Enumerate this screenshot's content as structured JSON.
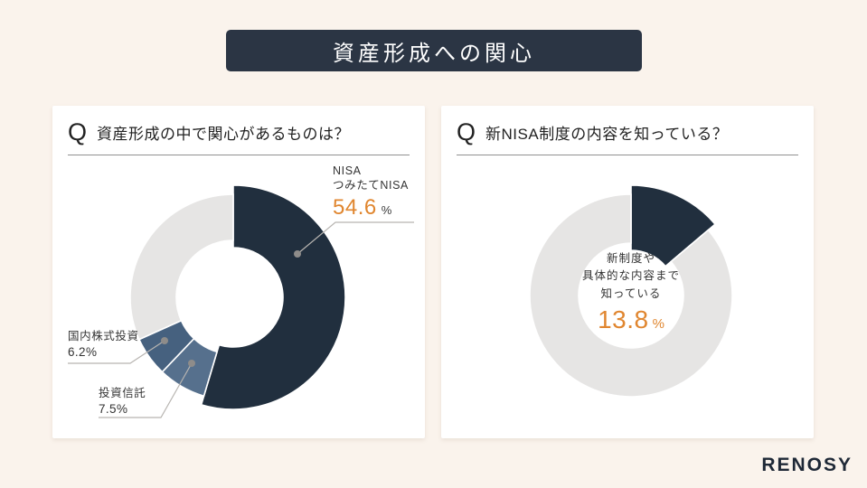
{
  "page": {
    "title": "資産形成への関心",
    "background_color": "#faf3ec",
    "banner_color": "#2b3544",
    "accent_orange": "#e0862f"
  },
  "brand": {
    "logo_text": "RENOSY"
  },
  "questions": [
    {
      "prefix": "Q",
      "title": "資産形成の中で関心があるものは？"
    },
    {
      "prefix": "Q",
      "title": "新NISA制度の内容を知っている？"
    }
  ],
  "chart_data": [
    {
      "type": "pie",
      "donut": true,
      "title": "資産形成の中で関心があるものは？",
      "start_angle_deg": 0,
      "direction": "clockwise",
      "legend": "none",
      "segments": [
        {
          "name": "NISA・つみたてNISA",
          "label_lines": [
            "NISA",
            "つみたてNISA"
          ],
          "value": 54.6,
          "unit": "%",
          "color": "#212f3e",
          "emphasis": true
        },
        {
          "name": "投資信託",
          "label_lines": [
            "投資信託"
          ],
          "value": 7.5,
          "unit": "%",
          "color": "#56708d",
          "emphasis": false
        },
        {
          "name": "国内株式投資",
          "label_lines": [
            "国内株式投資"
          ],
          "value": 6.2,
          "unit": "%",
          "color": "#46617f",
          "emphasis": false
        },
        {
          "name": "",
          "label_lines": [],
          "value": 31.7,
          "unit": "%",
          "color": "#e6e5e4",
          "emphasis": false
        }
      ]
    },
    {
      "type": "pie",
      "donut": true,
      "title": "新NISA制度の内容を知っている？",
      "start_angle_deg": 0,
      "direction": "clockwise",
      "legend": "none",
      "center_label_lines": [
        "新制度や",
        "具体的な内容まで",
        "知っている"
      ],
      "segments": [
        {
          "name": "新制度や具体的な内容まで知っている",
          "value": 13.8,
          "unit": "%",
          "color": "#212f3e",
          "emphasis": true
        },
        {
          "name": "",
          "value": 86.2,
          "unit": "%",
          "color": "#e6e5e4",
          "emphasis": false
        }
      ]
    }
  ]
}
